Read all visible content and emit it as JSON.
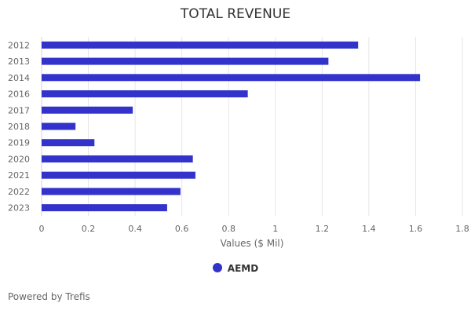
{
  "chart_data": {
    "type": "bar",
    "orientation": "horizontal",
    "title": "TOTAL REVENUE",
    "xlabel": "Values ($ Mil)",
    "ylabel": "",
    "categories": [
      "2012",
      "2013",
      "2014",
      "2016",
      "2017",
      "2018",
      "2019",
      "2020",
      "2021",
      "2022",
      "2023"
    ],
    "series": [
      {
        "name": "AEMD",
        "color": "#3333cc",
        "values": [
          1.354,
          1.227,
          1.619,
          0.882,
          0.39,
          0.145,
          0.226,
          0.647,
          0.658,
          0.594,
          0.537
        ]
      }
    ],
    "xlim": [
      0,
      1.8
    ],
    "xticks": [
      "0",
      "0.2",
      "0.4",
      "0.6",
      "0.8",
      "1",
      "1.2",
      "1.4",
      "1.6",
      "1.8"
    ],
    "grid": true,
    "legend": "bottom-center"
  },
  "footer": {
    "credit": "Powered by Trefis"
  }
}
